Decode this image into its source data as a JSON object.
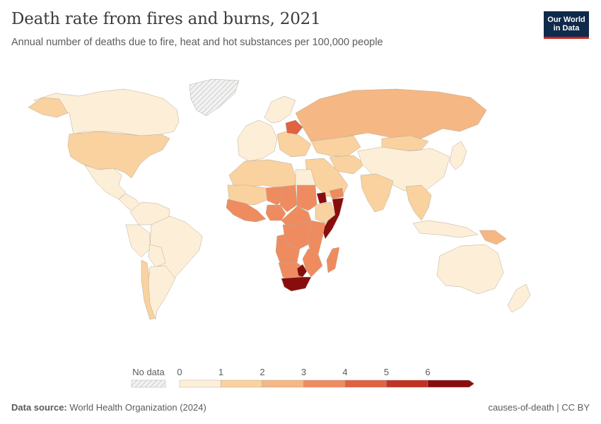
{
  "header": {
    "title": "Death rate from fires and burns, 2021",
    "subtitle": "Annual number of deaths due to fire, heat and hot substances per 100,000 people"
  },
  "logo": {
    "line1": "Our World",
    "line2": "in Data"
  },
  "legend": {
    "no_data_label": "No data",
    "ticks": [
      "0",
      "1",
      "2",
      "3",
      "4",
      "5",
      "6"
    ],
    "bin_colors": [
      "#fdefd7",
      "#f9d29f",
      "#f5b784",
      "#ef8c5f",
      "#e06240",
      "#c23224",
      "#8a0d0d"
    ],
    "no_data_color": "#e6e6e6"
  },
  "regions": [
    {
      "name": "Canada",
      "value": 0.6
    },
    {
      "name": "United States",
      "value": 1.3
    },
    {
      "name": "Greenland",
      "value": null
    },
    {
      "name": "Alaska",
      "value": 1.3
    },
    {
      "name": "Mexico",
      "value": 0.6
    },
    {
      "name": "Central America",
      "value": 0.6
    },
    {
      "name": "Colombia & Venezuela",
      "value": 0.5
    },
    {
      "name": "Brazil",
      "value": 0.4
    },
    {
      "name": "Peru",
      "value": 0.5
    },
    {
      "name": "Bolivia",
      "value": 0.5
    },
    {
      "name": "Chile",
      "value": 1.3
    },
    {
      "name": "Argentina",
      "value": 0.6
    },
    {
      "name": "Western Europe",
      "value": 0.5
    },
    {
      "name": "Scandinavia",
      "value": 0.6
    },
    {
      "name": "Eastern Europe",
      "value": 1.5
    },
    {
      "name": "Belarus",
      "value": 4.8
    },
    {
      "name": "Russia",
      "value": 2.2
    },
    {
      "name": "Kazakhstan",
      "value": 1.6
    },
    {
      "name": "Central Asia",
      "value": 1.4
    },
    {
      "name": "Mongolia",
      "value": 1.4
    },
    {
      "name": "China",
      "value": 0.5
    },
    {
      "name": "Middle East",
      "value": 1.3
    },
    {
      "name": "India",
      "value": 1.5
    },
    {
      "name": "Southeast Asia",
      "value": 1.4
    },
    {
      "name": "Japan",
      "value": 0.7
    },
    {
      "name": "Indonesia",
      "value": 0.5
    },
    {
      "name": "Papua New Guinea",
      "value": 2.4
    },
    {
      "name": "Australia",
      "value": 0.5
    },
    {
      "name": "New Zealand",
      "value": 0.6
    },
    {
      "name": "North Africa",
      "value": 1.2
    },
    {
      "name": "Egypt",
      "value": 0.6
    },
    {
      "name": "Mauritania & Mali",
      "value": 1.8
    },
    {
      "name": "West Africa Coast",
      "value": 3.5
    },
    {
      "name": "Niger",
      "value": 3.4
    },
    {
      "name": "Nigeria",
      "value": 3.6
    },
    {
      "name": "Chad",
      "value": 3.2
    },
    {
      "name": "Sudan",
      "value": 3.0
    },
    {
      "name": "Ethiopia",
      "value": 1.8
    },
    {
      "name": "Somalia",
      "value": 6.3
    },
    {
      "name": "Central Africa",
      "value": 3.8
    },
    {
      "name": "DR Congo",
      "value": 3.3
    },
    {
      "name": "East Africa",
      "value": 3.1
    },
    {
      "name": "Angola",
      "value": 3.4
    },
    {
      "name": "Mozambique",
      "value": 3.6
    },
    {
      "name": "Namibia & Botswana",
      "value": 3.2
    },
    {
      "name": "South Africa",
      "value": 6.4
    },
    {
      "name": "Eswatini",
      "value": 6.0
    },
    {
      "name": "Madagascar",
      "value": 3.3
    },
    {
      "name": "Yemen",
      "value": 3.6
    },
    {
      "name": "Eritrea",
      "value": 6.0
    }
  ],
  "footer": {
    "source_label": "Data source:",
    "source_value": "World Health Organization (2024)",
    "right_text": "causes-of-death | CC BY"
  }
}
